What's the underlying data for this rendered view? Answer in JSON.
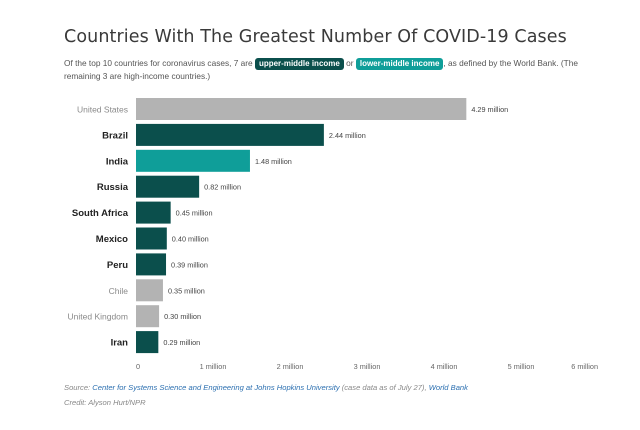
{
  "title": "Countries With The Greatest Number Of COVID-19 Cases",
  "subtitle": {
    "pre": "Of the top 10 countries for coronavirus cases, 7 are ",
    "badge_upper": "upper-middle income",
    "mid": " or ",
    "badge_lower": "lower-middle income",
    "post": ", as defined by the World Bank. (The remaining 3 are high-income countries.)"
  },
  "colors": {
    "upper-middle": "#0b4f4c",
    "lower-middle": "#0f9e99",
    "high": "#b3b3b3"
  },
  "chart_data": {
    "type": "bar",
    "orientation": "horizontal",
    "categories": [
      "United States",
      "Brazil",
      "India",
      "Russia",
      "South Africa",
      "Mexico",
      "Peru",
      "Chile",
      "United Kingdom",
      "Iran"
    ],
    "values": [
      4.29,
      2.44,
      1.48,
      0.82,
      0.45,
      0.4,
      0.39,
      0.35,
      0.3,
      0.29
    ],
    "value_labels": [
      "4.29 million",
      "2.44 million",
      "1.48 million",
      "0.82 million",
      "0.45 million",
      "0.40 million",
      "0.39 million",
      "0.35 million",
      "0.30 million",
      "0.29 million"
    ],
    "income_group": [
      "high",
      "upper-middle",
      "lower-middle",
      "upper-middle",
      "upper-middle",
      "upper-middle",
      "upper-middle",
      "high",
      "high",
      "upper-middle"
    ],
    "xlim": [
      0,
      6
    ],
    "xticks": [
      0,
      1,
      2,
      3,
      4,
      5,
      6
    ],
    "xtick_labels": [
      "0",
      "1 million",
      "2 million",
      "3 million",
      "4 million",
      "5 million",
      "6 million"
    ],
    "xlabel": "",
    "ylabel": "",
    "grid": false
  },
  "source": {
    "prefix": "Source: ",
    "link1": "Center for Systems Science and Engineering at Johns Hopkins University",
    "middle": " (case data as of July 27), ",
    "link2": "World Bank"
  },
  "credit": "Credit: Alyson Hurt/NPR"
}
